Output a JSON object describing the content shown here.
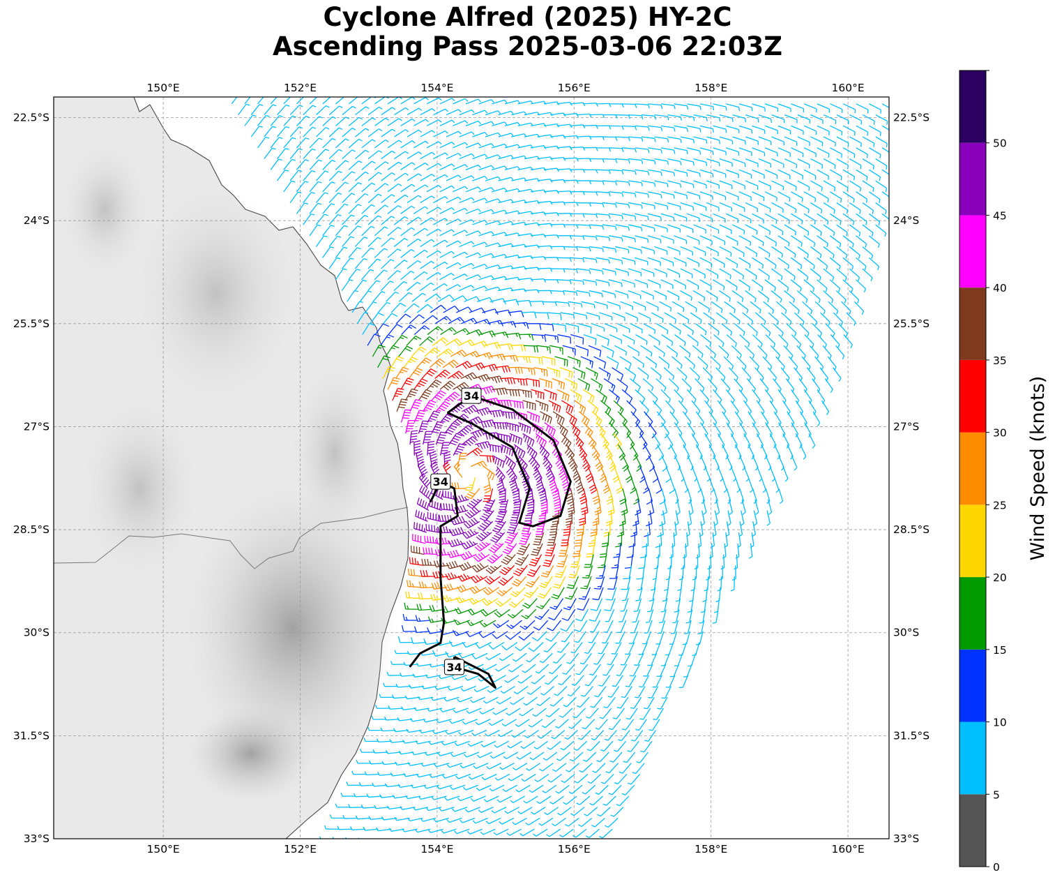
{
  "title": {
    "line1": "Cyclone Alfred (2025) HY-2C",
    "line2": "Ascending Pass 2025-03-06 22:03Z"
  },
  "map": {
    "lon_range": [
      148.4,
      160.6
    ],
    "lat_range": [
      -33.0,
      -22.2
    ],
    "lon_ticks": [
      150,
      152,
      154,
      156,
      158,
      160
    ],
    "lon_tick_labels": [
      "150°E",
      "152°E",
      "154°E",
      "156°E",
      "158°E",
      "160°E"
    ],
    "lat_ticks": [
      -22.5,
      -24,
      -25.5,
      -27,
      -28.5,
      -30,
      -31.5,
      -33
    ],
    "lat_tick_labels": [
      "22.5°S",
      "24°S",
      "25.5°S",
      "27°S",
      "28.5°S",
      "30°S",
      "31.5°S",
      "33°S"
    ],
    "basemap": "grayscale terrain",
    "gridlines": true
  },
  "chart_data": {
    "type": "wind_barbs",
    "storm_center": {
      "lon": 154.5,
      "lat": -27.7
    },
    "swath_west_edge_lon": [
      [
        -22.3,
        151.0
      ],
      [
        -25.0,
        152.6
      ],
      [
        -26.5,
        153.3
      ],
      [
        -28.0,
        153.9
      ],
      [
        -30.0,
        153.7
      ],
      [
        -32.0,
        153.0
      ],
      [
        -33.0,
        152.5
      ]
    ],
    "swath_east_edge_lon": [
      [
        -22.3,
        160.6
      ],
      [
        -24.0,
        160.5
      ],
      [
        -25.5,
        160.0
      ],
      [
        -27.0,
        159.5
      ],
      [
        -28.5,
        158.7
      ],
      [
        -30.0,
        158.0
      ],
      [
        -31.5,
        157.2
      ],
      [
        -33.0,
        156.7
      ]
    ],
    "contour_34kt": {
      "label": "34",
      "segments": [
        [
          [
            154.15,
            -26.8
          ],
          [
            154.5,
            -26.55
          ],
          [
            155.1,
            -26.75
          ],
          [
            155.7,
            -27.2
          ],
          [
            155.95,
            -27.8
          ],
          [
            155.8,
            -28.3
          ],
          [
            155.4,
            -28.45
          ],
          [
            155.2,
            -28.4
          ],
          [
            155.35,
            -27.9
          ],
          [
            155.1,
            -27.3
          ],
          [
            154.5,
            -26.95
          ],
          [
            154.15,
            -26.8
          ]
        ],
        [
          [
            153.9,
            -28.1
          ],
          [
            154.05,
            -27.8
          ],
          [
            154.25,
            -27.9
          ],
          [
            154.3,
            -28.3
          ],
          [
            154.05,
            -28.45
          ],
          [
            154.05,
            -29.2
          ],
          [
            154.1,
            -29.85
          ],
          [
            154.05,
            -30.15
          ],
          [
            153.75,
            -30.3
          ],
          [
            153.6,
            -30.5
          ]
        ],
        [
          [
            154.25,
            -30.35
          ],
          [
            154.25,
            -30.5
          ],
          [
            154.6,
            -30.6
          ],
          [
            154.85,
            -30.8
          ],
          [
            154.75,
            -30.6
          ],
          [
            154.55,
            -30.5
          ],
          [
            154.25,
            -30.35
          ]
        ]
      ]
    },
    "colorbar": {
      "label": "Wind Speed (knots)",
      "bounds": [
        0,
        5,
        10,
        15,
        20,
        25,
        30,
        35,
        40,
        45,
        50,
        55
      ],
      "tick_values": [
        0,
        5,
        10,
        15,
        20,
        25,
        30,
        35,
        40,
        45,
        50
      ],
      "tick_labels": [
        "0",
        "5",
        "10",
        "15",
        "20",
        "25",
        "30",
        "35",
        "40",
        "45",
        "50"
      ],
      "colors": [
        "#555555",
        "#00bfff",
        "#0033ff",
        "#009900",
        "#ffd700",
        "#ff8c00",
        "#ff0000",
        "#7f3a1e",
        "#ff00ff",
        "#8800bb",
        "#2a0060"
      ]
    }
  }
}
